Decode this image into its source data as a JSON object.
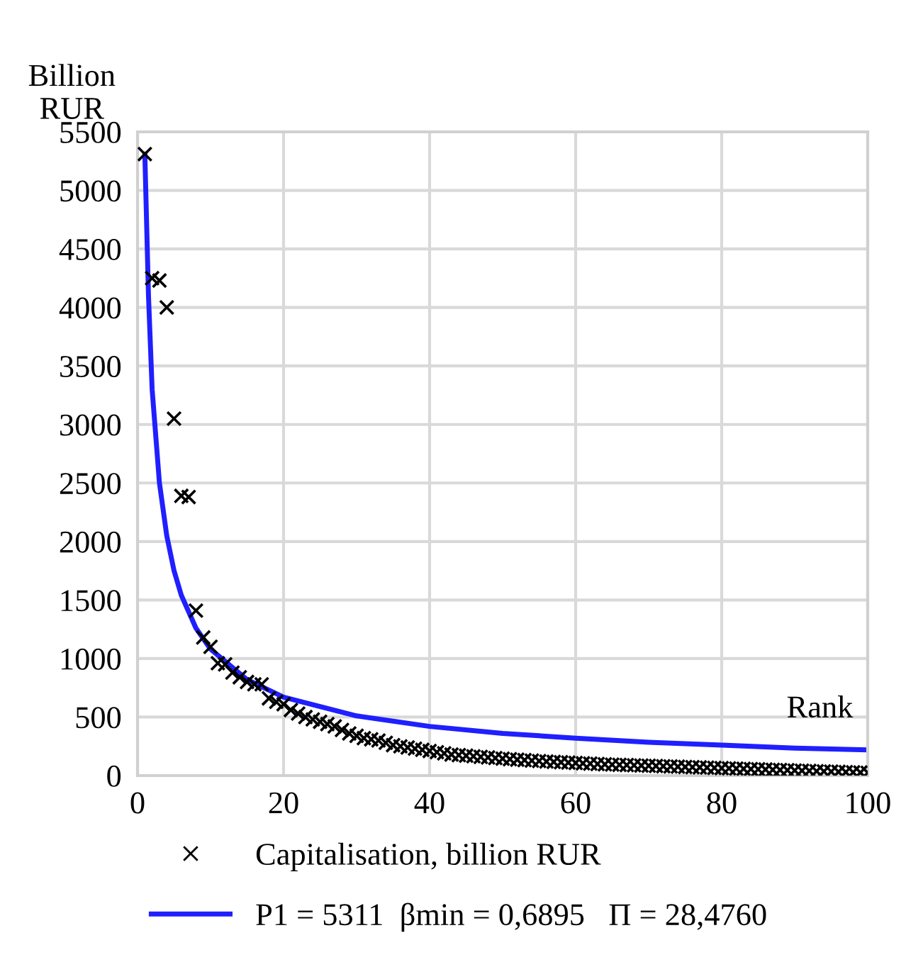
{
  "chart_data": {
    "type": "scatter",
    "ylabel": "Billion\nRUR",
    "xlabel": "Rank",
    "xlim": [
      0,
      100
    ],
    "xticks": [
      0,
      20,
      40,
      60,
      80,
      100
    ],
    "ylim": [
      0,
      5500
    ],
    "yticks": [
      0,
      500,
      1000,
      1500,
      2000,
      2500,
      3000,
      3500,
      4000,
      4500,
      5000,
      5500
    ],
    "grid": true,
    "legend": "bottom",
    "series": [
      {
        "name": "Capitalisation, billion RUR",
        "marker": "cross",
        "color": "#000000",
        "x": [
          1,
          2,
          3,
          4,
          5,
          6,
          7,
          8,
          9,
          10,
          11,
          12,
          13,
          14,
          15,
          16,
          17,
          18,
          19,
          20,
          21,
          22,
          23,
          24,
          25,
          26,
          27,
          28,
          29,
          30,
          31,
          32,
          33,
          34,
          35,
          36,
          37,
          38,
          39,
          40,
          41,
          42,
          43,
          44,
          45,
          46,
          47,
          48,
          49,
          50,
          51,
          52,
          53,
          54,
          55,
          56,
          57,
          58,
          59,
          60,
          61,
          62,
          63,
          64,
          65,
          66,
          67,
          68,
          69,
          70,
          71,
          72,
          73,
          74,
          75,
          76,
          77,
          78,
          79,
          80,
          81,
          82,
          83,
          84,
          85,
          86,
          87,
          88,
          89,
          90,
          91,
          92,
          93,
          94,
          95,
          96,
          97,
          98,
          99,
          100
        ],
        "values": [
          5310,
          4250,
          4230,
          4000,
          3050,
          2390,
          2380,
          1410,
          1180,
          1100,
          960,
          950,
          880,
          840,
          800,
          780,
          780,
          660,
          630,
          610,
          560,
          530,
          500,
          480,
          460,
          440,
          420,
          390,
          360,
          340,
          320,
          310,
          300,
          280,
          260,
          250,
          240,
          230,
          220,
          210,
          200,
          190,
          180,
          175,
          170,
          165,
          160,
          155,
          150,
          145,
          140,
          136,
          132,
          128,
          124,
          120,
          117,
          114,
          111,
          108,
          105,
          102,
          99,
          96,
          94,
          92,
          90,
          88,
          86,
          84,
          82,
          80,
          78,
          76,
          74,
          72,
          70,
          68,
          66,
          64,
          62,
          60,
          58,
          56,
          54,
          52,
          50,
          48,
          46,
          44,
          42,
          40,
          38,
          36,
          34,
          32,
          30,
          28,
          26,
          24
        ]
      },
      {
        "name": "P1 = 5311  βmin = 0,6895   Π = 28,4760",
        "type": "line",
        "marker": "none",
        "line_style": "solid",
        "color": "#1f1fff",
        "x": [
          1,
          1.5,
          2,
          3,
          4,
          5,
          6,
          8,
          10,
          15,
          20,
          30,
          40,
          50,
          60,
          70,
          80,
          90,
          100
        ],
        "values": [
          5310,
          4100,
          3300,
          2500,
          2050,
          1750,
          1540,
          1260,
          1080,
          820,
          670,
          510,
          420,
          360,
          320,
          285,
          260,
          235,
          220
        ]
      }
    ]
  }
}
